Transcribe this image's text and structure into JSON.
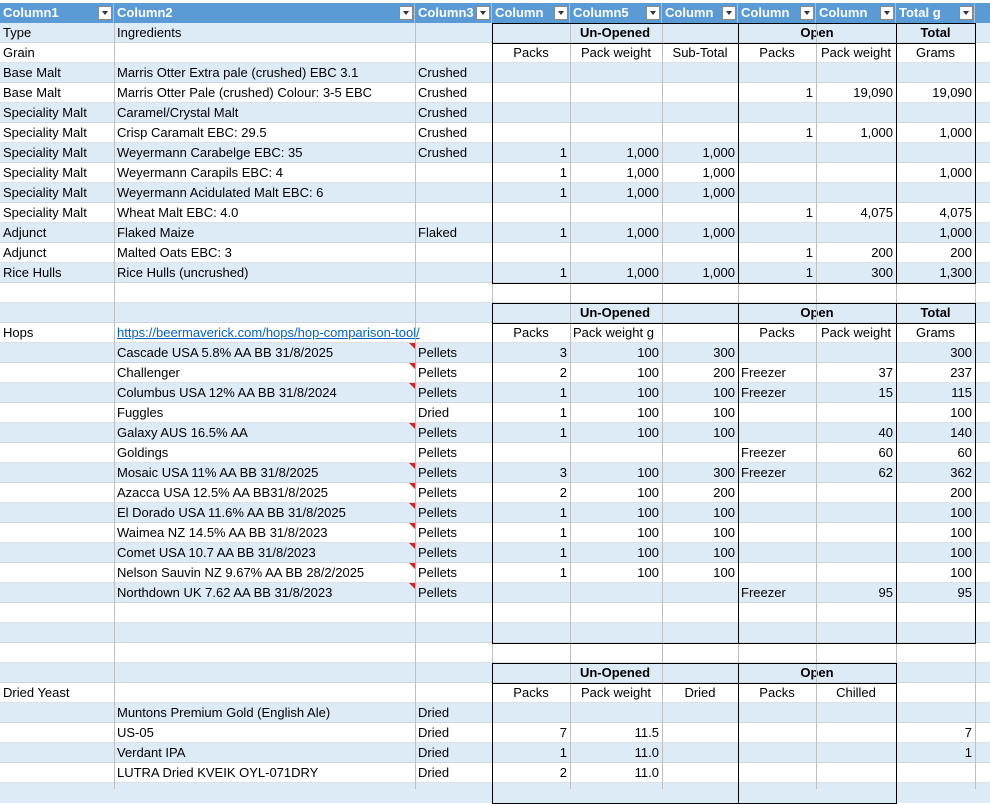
{
  "header": [
    "Column1",
    "Column2",
    "Column3",
    "Column",
    "Column5",
    "Column",
    "Column",
    "Column",
    "Total g"
  ],
  "grain": {
    "top": [
      "Type",
      "Ingredients",
      "",
      "Un-Opened",
      "",
      "",
      "Open",
      "",
      "Total"
    ],
    "sub": [
      "Grain",
      "",
      "",
      "Packs",
      "Pack weight",
      "Sub-Total",
      "Packs",
      "Pack weight",
      "Grams"
    ],
    "rows": [
      [
        "Base Malt",
        "Marris Otter Extra pale (crushed) EBC 3.1",
        "Crushed",
        "",
        "",
        "",
        "",
        "",
        ""
      ],
      [
        "Base Malt",
        "Marris Otter Pale (crushed) Colour: 3-5 EBC",
        "Crushed",
        "",
        "",
        "",
        "1",
        "19,090",
        "19,090"
      ],
      [
        "Speciality Malt",
        "Caramel/Crystal Malt",
        "Crushed",
        "",
        "",
        "",
        "",
        "",
        ""
      ],
      [
        "Speciality Malt",
        "Crisp Caramalt EBC: 29.5",
        "Crushed",
        "",
        "",
        "",
        "1",
        "1,000",
        "1,000"
      ],
      [
        "Speciality Malt",
        "Weyermann Carabelge EBC: 35",
        "Crushed",
        "1",
        "1,000",
        "1,000",
        "",
        "",
        ""
      ],
      [
        "Speciality Malt",
        "Weyermann Carapils EBC: 4",
        "",
        "1",
        "1,000",
        "1,000",
        "",
        "",
        "1,000"
      ],
      [
        "Speciality Malt",
        "Weyermann Acidulated Malt EBC: 6",
        "",
        "1",
        "1,000",
        "1,000",
        "",
        "",
        ""
      ],
      [
        "Speciality Malt",
        "Wheat Malt EBC: 4.0",
        "",
        "",
        "",
        "",
        "1",
        "4,075",
        "4,075"
      ],
      [
        "Adjunct",
        "Flaked Maize",
        "Flaked",
        "1",
        "1,000",
        "1,000",
        "",
        "",
        "1,000"
      ],
      [
        "Adjunct",
        "Malted Oats EBC: 3",
        "",
        "",
        "",
        "",
        "1",
        "200",
        "200"
      ],
      [
        "Rice Hulls",
        "Rice Hulls (uncrushed)",
        "",
        "1",
        "1,000",
        "1,000",
        "1",
        "300",
        "1,300"
      ]
    ]
  },
  "hops": {
    "top": [
      "",
      "",
      "",
      "Un-Opened",
      "",
      "",
      "Open",
      "",
      "Total"
    ],
    "sub": [
      "Hops",
      "https://beermaverick.com/hops/hop-comparison-tool/",
      "",
      "Packs",
      "Pack weight g",
      "",
      "Packs",
      "Pack weight",
      "Grams"
    ],
    "rows": [
      [
        "",
        "Cascade USA 5.8% AA BB 31/8/2025",
        "Pellets",
        "3",
        "100",
        "300",
        "",
        "",
        "300"
      ],
      [
        "",
        "Challenger",
        "Pellets",
        "2",
        "100",
        "200",
        "Freezer",
        "37",
        "237"
      ],
      [
        "",
        "Columbus USA 12% AA BB 31/8/2024",
        "Pellets",
        "1",
        "100",
        "100",
        "Freezer",
        "15",
        "115"
      ],
      [
        "",
        "Fuggles",
        "Dried",
        "1",
        "100",
        "100",
        "",
        "",
        "100"
      ],
      [
        "",
        "Galaxy AUS 16.5% AA",
        "Pellets",
        "1",
        "100",
        "100",
        "",
        "40",
        "140"
      ],
      [
        "",
        "Goldings",
        "Pellets",
        "",
        "",
        "",
        "Freezer",
        "60",
        "60"
      ],
      [
        "",
        "Mosaic USA 11% AA BB 31/8/2025",
        "Pellets",
        "3",
        "100",
        "300",
        "Freezer",
        "62",
        "362"
      ],
      [
        "",
        "Azacca USA 12.5% AA BB31/8/2025",
        "Pellets",
        "2",
        "100",
        "200",
        "",
        "",
        "200"
      ],
      [
        "",
        "El Dorado USA 11.6% AA BB 31/8/2025",
        "Pellets",
        "1",
        "100",
        "100",
        "",
        "",
        "100"
      ],
      [
        "",
        "Waimea NZ 14.5% AA BB 31/8/2023",
        "Pellets",
        "1",
        "100",
        "100",
        "",
        "",
        "100"
      ],
      [
        "",
        "Comet USA 10.7 AA BB 31/8/2023",
        "Pellets",
        "1",
        "100",
        "100",
        "",
        "",
        "100"
      ],
      [
        "",
        "Nelson Sauvin NZ 9.67% AA BB 28/2/2025",
        "Pellets",
        "1",
        "100",
        "100",
        "",
        "",
        "100"
      ],
      [
        "",
        "Northdown UK 7.62 AA BB 31/8/2023",
        "Pellets",
        "",
        "",
        "",
        "Freezer",
        "95",
        "95"
      ]
    ]
  },
  "yeast": {
    "top": [
      "",
      "",
      "",
      "Un-Opened",
      "",
      "",
      "Open",
      "",
      ""
    ],
    "sub": [
      "Dried Yeast",
      "",
      "",
      "Packs",
      "Pack weight",
      "Dried",
      "Packs",
      "Chilled",
      ""
    ],
    "rows": [
      [
        "",
        "Muntons Premium Gold (English Ale)",
        "Dried",
        "",
        "",
        "",
        "",
        "",
        ""
      ],
      [
        "",
        "US-05",
        "Dried",
        "7",
        "11.5",
        "",
        "",
        "",
        "7"
      ],
      [
        "",
        "Verdant IPA",
        "Dried",
        "1",
        "11.0",
        "",
        "",
        "",
        "1"
      ],
      [
        "",
        "LUTRA Dried KVEIK   OYL-071DRY",
        "Dried",
        "2",
        "11.0",
        "",
        "",
        "",
        ""
      ]
    ]
  }
}
